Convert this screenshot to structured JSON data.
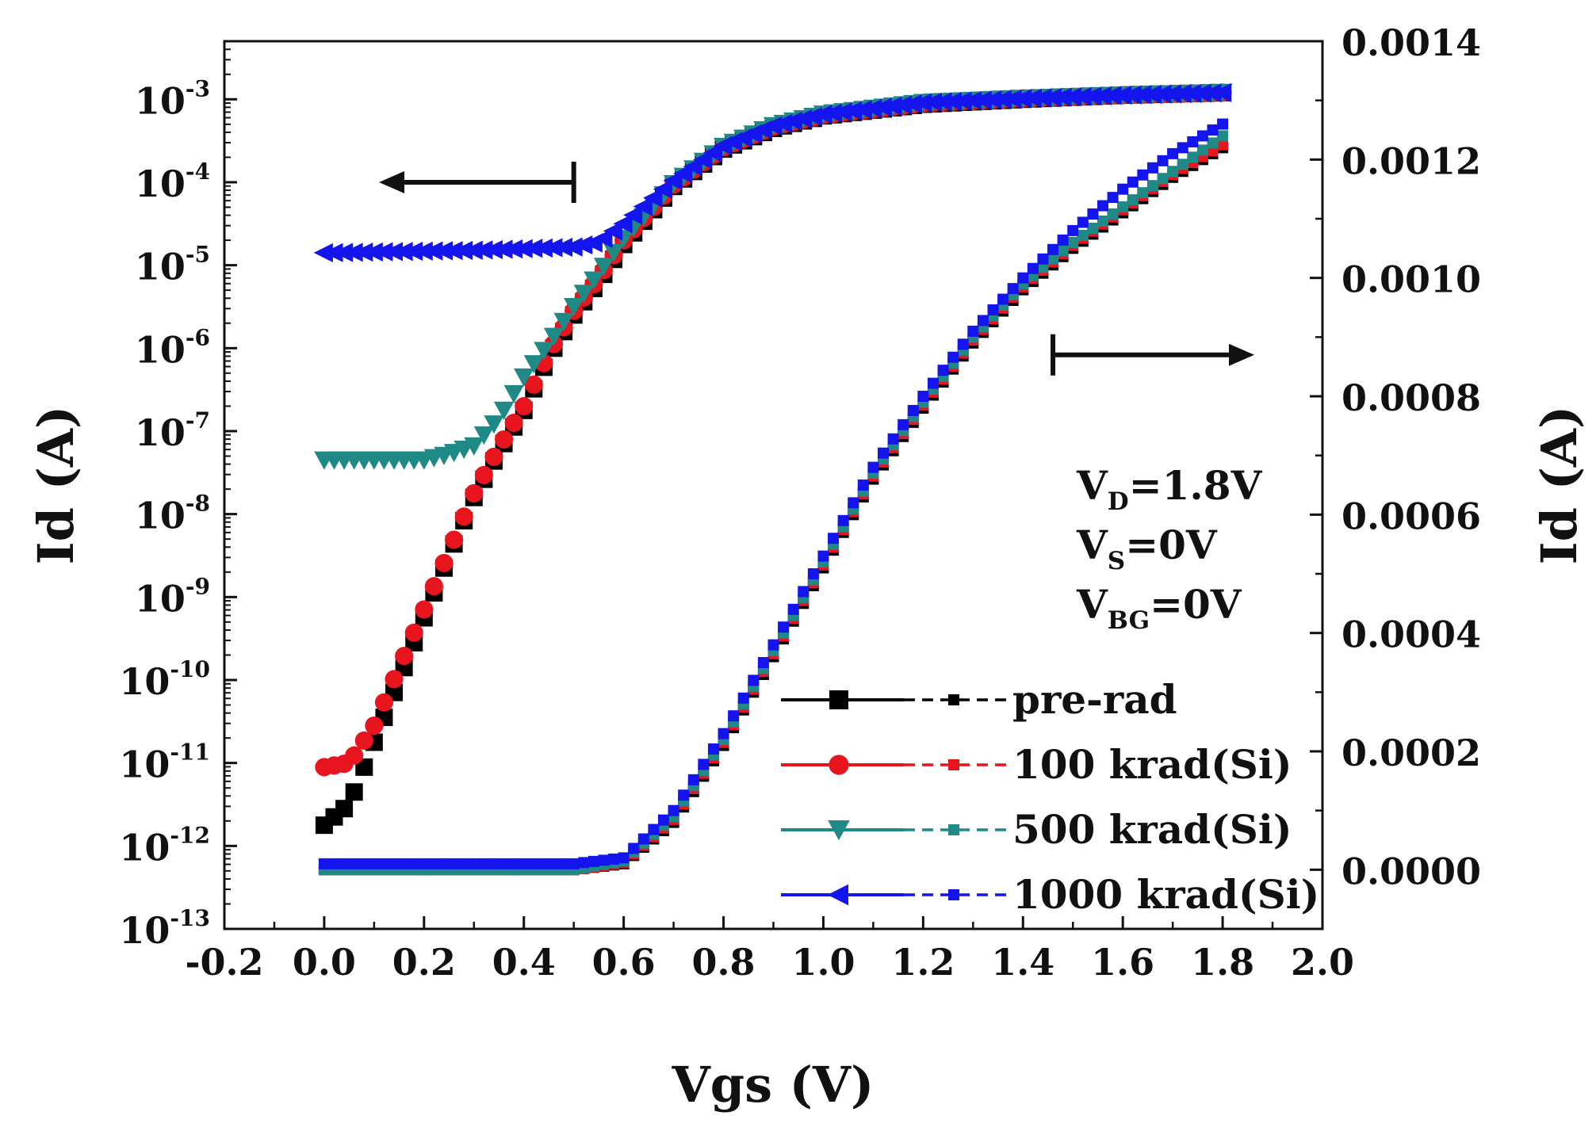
{
  "chart_data": {
    "type": "scatter",
    "title": "",
    "xlabel": "Vgs (V)",
    "ylabel_left": "Id (A)",
    "ylabel_right": "Id (A)",
    "xlim": [
      -0.2,
      2.0
    ],
    "x_ticks": [
      "-0.2",
      "0.0",
      "0.2",
      "0.4",
      "0.6",
      "0.8",
      "1.0",
      "1.2",
      "1.4",
      "1.6",
      "1.8",
      "2.0"
    ],
    "y_left": {
      "scale": "log",
      "range_exp": [
        -13,
        -2.3
      ],
      "ticks": [
        {
          "exp": -13,
          "base": "10",
          "sup": "-13"
        },
        {
          "exp": -12,
          "base": "10",
          "sup": "-12"
        },
        {
          "exp": -11,
          "base": "10",
          "sup": "-11"
        },
        {
          "exp": -10,
          "base": "10",
          "sup": "-10"
        },
        {
          "exp": -9,
          "base": "10",
          "sup": "-9"
        },
        {
          "exp": -8,
          "base": "10",
          "sup": "-8"
        },
        {
          "exp": -7,
          "base": "10",
          "sup": "-7"
        },
        {
          "exp": -6,
          "base": "10",
          "sup": "-6"
        },
        {
          "exp": -5,
          "base": "10",
          "sup": "-5"
        },
        {
          "exp": -4,
          "base": "10",
          "sup": "-4"
        },
        {
          "exp": -3,
          "base": "10",
          "sup": "-3"
        }
      ]
    },
    "y_right": {
      "scale": "linear",
      "range": [
        -0.0001,
        0.0014
      ],
      "ticks": [
        "0.0000",
        "0.0002",
        "0.0004",
        "0.0006",
        "0.0008",
        "0.0010",
        "0.0012",
        "0.0014"
      ]
    },
    "conditions": [
      {
        "base": "V",
        "sub": "D",
        "rest": "=1.8V"
      },
      {
        "base": "V",
        "sub": "S",
        "rest": "=0V"
      },
      {
        "base": "V",
        "sub": "BG",
        "rest": "=0V"
      }
    ],
    "arrows": [
      {
        "points_to": "left-axis",
        "vgs": 0.5,
        "exp": -4
      },
      {
        "points_to": "right-axis",
        "vgs": 1.46,
        "id": 0.00087
      }
    ],
    "legend_position": "bottom-right",
    "series": [
      {
        "name": "pre-rad",
        "color": "#000000",
        "log_marker": "square",
        "log_points": [
          [
            0.0,
            -11.75
          ],
          [
            0.05,
            -11.5
          ],
          [
            0.1,
            -10.75
          ],
          [
            0.15,
            -10
          ],
          [
            0.2,
            -9.25
          ],
          [
            0.25,
            -8.5
          ],
          [
            0.3,
            -7.8
          ],
          [
            0.35,
            -7.25
          ],
          [
            0.4,
            -6.75
          ],
          [
            0.45,
            -6.1
          ],
          [
            0.5,
            -5.6
          ],
          [
            0.55,
            -5.2
          ],
          [
            0.6,
            -4.75
          ],
          [
            0.7,
            -4.05
          ],
          [
            0.8,
            -3.6
          ],
          [
            0.9,
            -3.35
          ],
          [
            1.0,
            -3.2
          ],
          [
            1.2,
            -3.06
          ],
          [
            1.4,
            -3.0
          ],
          [
            1.6,
            -2.95
          ],
          [
            1.8,
            -2.92
          ]
        ],
        "lin_points": [
          [
            0.0,
            0.0
          ],
          [
            0.5,
            0.0
          ],
          [
            0.6,
            1e-05
          ],
          [
            0.7,
            8e-05
          ],
          [
            0.8,
            0.00021
          ],
          [
            0.9,
            0.00036
          ],
          [
            1.0,
            0.00051
          ],
          [
            1.1,
            0.00066
          ],
          [
            1.2,
            0.00078
          ],
          [
            1.3,
            0.00089
          ],
          [
            1.4,
            0.00098
          ],
          [
            1.5,
            0.00105
          ],
          [
            1.6,
            0.00111
          ],
          [
            1.7,
            0.00117
          ],
          [
            1.8,
            0.00122
          ]
        ]
      },
      {
        "name": "100 krad(Si)",
        "color": "#e8141e",
        "log_marker": "circle",
        "log_points": [
          [
            0.0,
            -11.05
          ],
          [
            0.05,
            -11.0
          ],
          [
            0.1,
            -10.55
          ],
          [
            0.15,
            -9.85
          ],
          [
            0.2,
            -9.15
          ],
          [
            0.25,
            -8.45
          ],
          [
            0.3,
            -7.75
          ],
          [
            0.35,
            -7.2
          ],
          [
            0.4,
            -6.7
          ],
          [
            0.45,
            -6.05
          ],
          [
            0.5,
            -5.55
          ],
          [
            0.55,
            -5.15
          ],
          [
            0.6,
            -4.7
          ],
          [
            0.7,
            -4.03
          ],
          [
            0.8,
            -3.58
          ],
          [
            0.9,
            -3.33
          ],
          [
            1.0,
            -3.19
          ],
          [
            1.2,
            -3.05
          ],
          [
            1.4,
            -2.99
          ],
          [
            1.6,
            -2.95
          ],
          [
            1.8,
            -2.92
          ]
        ],
        "lin_points": [
          [
            0.0,
            0.0
          ],
          [
            0.5,
            0.0
          ],
          [
            0.6,
            1.2e-05
          ],
          [
            0.7,
            8.5e-05
          ],
          [
            0.8,
            0.000215
          ],
          [
            0.9,
            0.000365
          ],
          [
            1.0,
            0.000515
          ],
          [
            1.1,
            0.000665
          ],
          [
            1.2,
            0.000785
          ],
          [
            1.3,
            0.000895
          ],
          [
            1.4,
            0.000985
          ],
          [
            1.5,
            0.001055
          ],
          [
            1.6,
            0.001115
          ],
          [
            1.7,
            0.001175
          ],
          [
            1.8,
            0.001225
          ]
        ]
      },
      {
        "name": "500 krad(Si)",
        "color": "#1f8a85",
        "log_marker": "triangle-down",
        "log_points": [
          [
            0.0,
            -7.35
          ],
          [
            0.1,
            -7.35
          ],
          [
            0.2,
            -7.35
          ],
          [
            0.25,
            -7.28
          ],
          [
            0.3,
            -7.18
          ],
          [
            0.35,
            -6.85
          ],
          [
            0.4,
            -6.35
          ],
          [
            0.45,
            -5.95
          ],
          [
            0.5,
            -5.5
          ],
          [
            0.55,
            -5.1
          ],
          [
            0.6,
            -4.68
          ],
          [
            0.7,
            -4.02
          ],
          [
            0.8,
            -3.57
          ],
          [
            0.9,
            -3.32
          ],
          [
            1.0,
            -3.18
          ],
          [
            1.2,
            -3.04
          ],
          [
            1.4,
            -2.99
          ],
          [
            1.6,
            -2.95
          ],
          [
            1.8,
            -2.92
          ]
        ],
        "lin_points": [
          [
            0.0,
            0.0
          ],
          [
            0.5,
            0.0
          ],
          [
            0.6,
            1.5e-05
          ],
          [
            0.7,
            9e-05
          ],
          [
            0.8,
            0.00022
          ],
          [
            0.9,
            0.00037
          ],
          [
            1.0,
            0.00052
          ],
          [
            1.1,
            0.00067
          ],
          [
            1.2,
            0.00079
          ],
          [
            1.3,
            0.0009
          ],
          [
            1.4,
            0.00099
          ],
          [
            1.5,
            0.00106
          ],
          [
            1.6,
            0.00112
          ],
          [
            1.7,
            0.00118
          ],
          [
            1.8,
            0.00124
          ]
        ]
      },
      {
        "name": "1000 krad(Si)",
        "color": "#1414ee",
        "log_marker": "triangle-left",
        "log_points": [
          [
            0.0,
            -4.85
          ],
          [
            0.1,
            -4.84
          ],
          [
            0.2,
            -4.83
          ],
          [
            0.3,
            -4.82
          ],
          [
            0.4,
            -4.8
          ],
          [
            0.5,
            -4.78
          ],
          [
            0.55,
            -4.72
          ],
          [
            0.6,
            -4.5
          ],
          [
            0.7,
            -3.98
          ],
          [
            0.8,
            -3.56
          ],
          [
            0.9,
            -3.32
          ],
          [
            1.0,
            -3.18
          ],
          [
            1.2,
            -3.04
          ],
          [
            1.4,
            -2.99
          ],
          [
            1.6,
            -2.95
          ],
          [
            1.8,
            -2.92
          ]
        ],
        "lin_points": [
          [
            0.0,
            1e-05
          ],
          [
            0.5,
            1e-05
          ],
          [
            0.6,
            2e-05
          ],
          [
            0.7,
            0.0001
          ],
          [
            0.8,
            0.00023
          ],
          [
            0.9,
            0.00038
          ],
          [
            1.0,
            0.00053
          ],
          [
            1.1,
            0.00068
          ],
          [
            1.2,
            0.0008
          ],
          [
            1.3,
            0.00091
          ],
          [
            1.4,
            0.001
          ],
          [
            1.5,
            0.00108
          ],
          [
            1.6,
            0.00115
          ],
          [
            1.7,
            0.00121
          ],
          [
            1.8,
            0.00126
          ]
        ]
      }
    ]
  }
}
